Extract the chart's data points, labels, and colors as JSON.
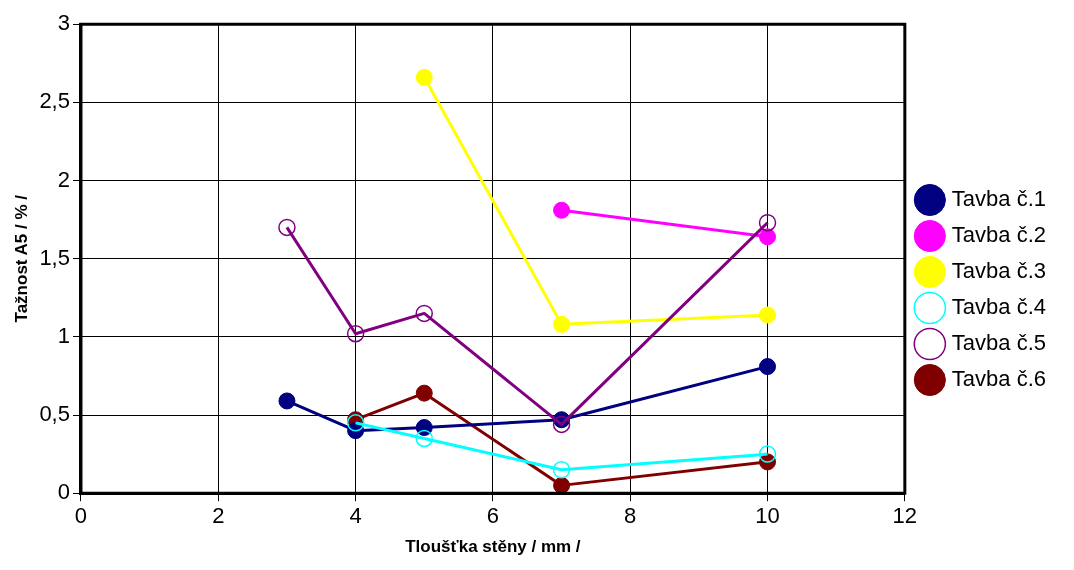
{
  "chart_data": {
    "type": "line",
    "xlabel": "Tloušťka stěny / mm /",
    "ylabel": "Tažnost A5 / % /",
    "xlim": [
      0,
      12
    ],
    "xticks": [
      0,
      2,
      4,
      6,
      8,
      10,
      12
    ],
    "ylim": [
      0,
      3
    ],
    "yticks": [
      0,
      {
        "value": 0.5,
        "label": "0,5"
      },
      1,
      {
        "value": 1.5,
        "label": "1,5"
      },
      2,
      {
        "value": 2.5,
        "label": "2,5"
      },
      3
    ],
    "grid": true,
    "legend": "right",
    "marker": "circle",
    "line_style": "solid",
    "series": [
      {
        "name": "Tavba č.1",
        "color": "#000080",
        "x": [
          3,
          4,
          5,
          7,
          10
        ],
        "values": [
          0.59,
          0.4,
          0.42,
          0.47,
          0.81
        ]
      },
      {
        "name": "Tavba č.2",
        "color": "#ff00ff",
        "x": [
          7,
          10
        ],
        "values": [
          1.81,
          1.64
        ]
      },
      {
        "name": "Tavba č.3",
        "color": "#ffff00",
        "x": [
          5,
          7,
          10
        ],
        "values": [
          2.66,
          1.08,
          1.14
        ]
      },
      {
        "name": "Tavba č.4",
        "color": "#00ffff",
        "x": [
          4,
          5,
          7,
          10
        ],
        "values": [
          0.45,
          0.35,
          0.15,
          0.25
        ],
        "marker": "circle-open"
      },
      {
        "name": "Tavba č.5",
        "color": "#800080",
        "x": [
          3,
          4,
          5,
          7,
          10
        ],
        "values": [
          1.7,
          1.02,
          1.15,
          0.44,
          1.73
        ],
        "marker": "circle-open"
      },
      {
        "name": "Tavba č.6",
        "color": "#800000",
        "x": [
          4,
          5,
          7,
          10
        ],
        "values": [
          0.47,
          0.64,
          0.05,
          0.2
        ]
      }
    ]
  }
}
